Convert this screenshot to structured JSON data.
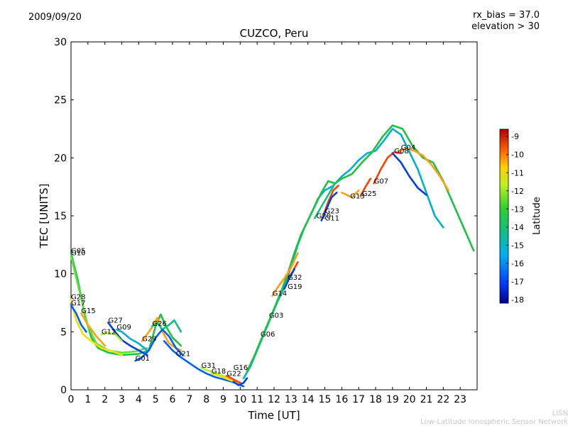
{
  "header": {
    "date": "2009/09/20",
    "rx_bias": "rx_bias = 37.0",
    "elevation": "elevation > 30"
  },
  "footer": {
    "line1": "LISN",
    "line2": "Low-Latitude Ionospheric Sensor Network"
  },
  "colors": {
    "series_palette": [
      "#00008f",
      "#0060ff",
      "#00b0d0",
      "#10c080",
      "#60e040",
      "#b0f030",
      "#f0e010",
      "#ffa010",
      "#ff4000",
      "#d00000"
    ]
  },
  "chart_data": {
    "type": "scatter",
    "title": "CUZCO, Peru",
    "xlabel": "Time [UT]",
    "ylabel": "TEC [UNITS]",
    "xlim": [
      0,
      24
    ],
    "ylim": [
      0,
      30
    ],
    "x_ticks": [
      "0",
      "1",
      "2",
      "3",
      "4",
      "5",
      "6",
      "7",
      "8",
      "9",
      "10",
      "11",
      "12",
      "13",
      "14",
      "15",
      "16",
      "17",
      "18",
      "19",
      "20",
      "21",
      "22",
      "23"
    ],
    "y_ticks": [
      "0",
      "5",
      "10",
      "15",
      "20",
      "25",
      "30"
    ],
    "grid": false,
    "colorbar": {
      "label": "Latitude",
      "range": [
        -18.2,
        -8.6
      ],
      "ticks": [
        "-9",
        "-10",
        "-11",
        "-12",
        "-13",
        "-14",
        "-15",
        "-16",
        "-17",
        "-18"
      ],
      "tick_values": [
        -9,
        -10,
        -11,
        -12,
        -13,
        -14,
        -15,
        -16,
        -17,
        -18
      ]
    },
    "series": [
      {
        "name": "G05",
        "label_at": [
          0.0,
          11.8
        ],
        "color": "#20c040",
        "points": [
          [
            0,
            11.8
          ],
          [
            0.4,
            9.5
          ],
          [
            0.8,
            6.5
          ],
          [
            1.2,
            4.5
          ],
          [
            1.6,
            3.6
          ],
          [
            2.2,
            3.2
          ],
          [
            3.0,
            3.0
          ],
          [
            4.0,
            3.1
          ],
          [
            4.6,
            3.4
          ],
          [
            5.0,
            5.5
          ],
          [
            5.3,
            6.5
          ],
          [
            5.6,
            5.5
          ],
          [
            6.0,
            4.5
          ],
          [
            6.5,
            3.8
          ]
        ]
      },
      {
        "name": "G10",
        "label_at": [
          0.0,
          11.6
        ],
        "color": "#60e040",
        "points": [
          [
            0,
            11.5
          ],
          [
            0.5,
            8.5
          ],
          [
            1.0,
            5.5
          ],
          [
            1.5,
            4.0
          ],
          [
            2.2,
            3.4
          ],
          [
            3.0,
            3.2
          ],
          [
            3.8,
            3.3
          ],
          [
            4.5,
            3.6
          ]
        ]
      },
      {
        "name": "G28",
        "label_at": [
          0.0,
          7.8
        ],
        "color": "#f0e010",
        "points": [
          [
            0,
            7.8
          ],
          [
            0.3,
            6.0
          ],
          [
            0.7,
            4.8
          ],
          [
            1.2,
            4.2
          ],
          [
            1.8,
            3.6
          ],
          [
            2.5,
            3.3
          ],
          [
            3.0,
            3.0
          ]
        ]
      },
      {
        "name": "G17",
        "label_at": [
          0.0,
          7.3
        ],
        "color": "#0060ff",
        "points": [
          [
            0,
            7.3
          ],
          [
            0.3,
            6.6
          ],
          [
            0.6,
            5.6
          ],
          [
            0.9,
            5.0
          ]
        ]
      },
      {
        "name": "G15",
        "label_at": [
          0.6,
          6.6
        ],
        "color": "#ffa010",
        "points": [
          [
            0.6,
            6.6
          ],
          [
            1.0,
            5.6
          ],
          [
            1.5,
            4.6
          ],
          [
            2.0,
            3.8
          ]
        ]
      },
      {
        "name": "G27",
        "label_at": [
          2.2,
          5.8
        ],
        "color": "#0040e0",
        "points": [
          [
            2.2,
            5.8
          ],
          [
            2.6,
            5.0
          ],
          [
            3.0,
            4.3
          ],
          [
            3.5,
            3.8
          ],
          [
            4.0,
            3.4
          ],
          [
            4.5,
            3.0
          ]
        ]
      },
      {
        "name": "G12",
        "label_at": [
          1.8,
          4.8
        ],
        "color": "#b0f030",
        "points": [
          [
            1.8,
            4.8
          ],
          [
            2.2,
            4.9
          ],
          [
            2.6,
            4.8
          ],
          [
            3.0,
            4.2
          ]
        ]
      },
      {
        "name": "G09",
        "label_at": [
          2.7,
          5.2
        ],
        "color": "#00b0d0",
        "points": [
          [
            2.7,
            5.2
          ],
          [
            3.0,
            5.0
          ],
          [
            3.5,
            4.4
          ],
          [
            4.0,
            4.0
          ],
          [
            4.5,
            3.4
          ]
        ]
      },
      {
        "name": "G29",
        "label_at": [
          4.2,
          4.2
        ],
        "color": "#ffa010",
        "points": [
          [
            4.2,
            4.2
          ],
          [
            4.5,
            4.8
          ],
          [
            4.8,
            5.4
          ],
          [
            5.1,
            6.2
          ],
          [
            5.4,
            5.0
          ],
          [
            5.8,
            4.0
          ],
          [
            6.2,
            3.6
          ],
          [
            6.5,
            3.4
          ]
        ]
      },
      {
        "name": "G26",
        "label_at": [
          4.8,
          5.5
        ],
        "color": "#10c080",
        "points": [
          [
            4.8,
            5.5
          ],
          [
            5.1,
            5.8
          ],
          [
            5.4,
            5.2
          ],
          [
            5.8,
            5.6
          ],
          [
            6.1,
            6.0
          ],
          [
            6.5,
            5.0
          ]
        ]
      },
      {
        "name": "G01",
        "label_at": [
          3.8,
          2.5
        ],
        "color": "#0060ff",
        "points": [
          [
            3.8,
            2.5
          ],
          [
            4.2,
            2.8
          ],
          [
            4.6,
            3.4
          ],
          [
            5.0,
            4.5
          ],
          [
            5.4,
            5.2
          ],
          [
            5.8,
            4.6
          ],
          [
            6.2,
            3.6
          ],
          [
            6.6,
            3.0
          ]
        ]
      },
      {
        "name": "G21",
        "label_at": [
          6.2,
          2.9
        ],
        "color": "#0060ff",
        "points": [
          [
            5.5,
            4.2
          ],
          [
            6.0,
            3.4
          ],
          [
            6.5,
            2.8
          ],
          [
            7.0,
            2.3
          ],
          [
            7.5,
            1.8
          ],
          [
            8.0,
            1.4
          ],
          [
            8.5,
            1.1
          ],
          [
            9.0,
            0.9
          ],
          [
            9.5,
            0.7
          ],
          [
            10.0,
            0.4
          ],
          [
            10.2,
            0.3
          ]
        ]
      },
      {
        "name": "G31",
        "label_at": [
          7.7,
          1.9
        ],
        "color": "#b0f030",
        "points": [
          [
            7.7,
            1.9
          ],
          [
            8.2,
            1.6
          ],
          [
            8.8,
            1.3
          ],
          [
            9.4,
            1.0
          ],
          [
            9.9,
            0.6
          ]
        ]
      },
      {
        "name": "G18",
        "label_at": [
          8.3,
          1.4
        ],
        "color": "#f0e010",
        "points": [
          [
            8.3,
            1.4
          ],
          [
            8.8,
            1.2
          ],
          [
            9.3,
            0.9
          ],
          [
            9.8,
            0.6
          ]
        ]
      },
      {
        "name": "G22",
        "label_at": [
          9.2,
          1.2
        ],
        "color": "#ff4000",
        "points": [
          [
            9.2,
            1.2
          ],
          [
            9.6,
            0.9
          ],
          [
            10.0,
            0.6
          ]
        ]
      },
      {
        "name": "G16",
        "label_at": [
          9.6,
          1.7
        ],
        "color": "#0040e0",
        "points": [
          [
            9.6,
            0.7
          ],
          [
            9.9,
            0.4
          ],
          [
            10.2,
            0.6
          ],
          [
            10.4,
            1.0
          ]
        ]
      },
      {
        "name": "G06",
        "label_at": [
          11.2,
          4.6
        ],
        "color": "#00b0d0",
        "points": [
          [
            10.2,
            1.0
          ],
          [
            10.6,
            2.0
          ],
          [
            11.0,
            3.4
          ],
          [
            11.4,
            4.8
          ],
          [
            11.8,
            6.2
          ],
          [
            12.2,
            7.6
          ],
          [
            12.6,
            8.8
          ],
          [
            13.0,
            10.6
          ],
          [
            13.4,
            12.5
          ],
          [
            13.8,
            14.0
          ],
          [
            14.2,
            15.2
          ],
          [
            14.6,
            16.5
          ],
          [
            15.0,
            17.2
          ],
          [
            15.5,
            17.6
          ],
          [
            16.0,
            18.4
          ],
          [
            16.5,
            19.0
          ],
          [
            17.0,
            19.8
          ],
          [
            17.5,
            20.4
          ],
          [
            18.0,
            20.6
          ],
          [
            18.5,
            21.5
          ],
          [
            19.0,
            22.5
          ],
          [
            19.5,
            22.0
          ],
          [
            20.0,
            20.5
          ],
          [
            20.5,
            19.0
          ],
          [
            21.0,
            17.0
          ],
          [
            21.5,
            15.0
          ],
          [
            22.0,
            14.0
          ]
        ]
      },
      {
        "name": "G03",
        "label_at": [
          11.7,
          6.2
        ],
        "color": "#20c040",
        "points": [
          [
            10.4,
            1.6
          ],
          [
            10.8,
            2.8
          ],
          [
            11.2,
            4.2
          ],
          [
            11.6,
            5.6
          ],
          [
            12.0,
            7.0
          ],
          [
            12.4,
            8.4
          ],
          [
            12.8,
            10.0
          ],
          [
            13.2,
            11.8
          ],
          [
            13.6,
            13.4
          ],
          [
            14.0,
            14.6
          ],
          [
            14.4,
            15.8
          ],
          [
            14.8,
            17.0
          ],
          [
            15.2,
            18.0
          ],
          [
            15.6,
            17.8
          ],
          [
            16.0,
            18.2
          ],
          [
            16.6,
            18.6
          ],
          [
            17.2,
            19.6
          ],
          [
            17.8,
            20.5
          ],
          [
            18.4,
            21.8
          ],
          [
            19.0,
            22.8
          ],
          [
            19.6,
            22.5
          ],
          [
            20.2,
            21.0
          ],
          [
            20.8,
            20.0
          ],
          [
            21.4,
            19.6
          ],
          [
            22.0,
            18.0
          ],
          [
            22.6,
            16.0
          ],
          [
            23.2,
            14.0
          ],
          [
            23.8,
            12.0
          ]
        ]
      },
      {
        "name": "G14",
        "label_at": [
          11.9,
          8.1
        ],
        "color": "#ffa010",
        "points": [
          [
            11.9,
            8.1
          ],
          [
            12.2,
            8.8
          ],
          [
            12.6,
            9.6
          ],
          [
            13.0,
            10.5
          ],
          [
            13.4,
            11.8
          ]
        ]
      },
      {
        "name": "G32",
        "label_at": [
          12.8,
          9.5
        ],
        "color": "#ff4000",
        "points": [
          [
            12.8,
            9.5
          ],
          [
            13.1,
            10.2
          ],
          [
            13.4,
            11.0
          ]
        ]
      },
      {
        "name": "G19",
        "label_at": [
          12.8,
          8.7
        ],
        "color": "#0040e0",
        "points": [
          [
            12.6,
            8.7
          ],
          [
            12.9,
            9.6
          ],
          [
            13.2,
            10.4
          ]
        ]
      },
      {
        "name": "G23",
        "label_at": [
          15.0,
          15.2
        ],
        "color": "#ff4000",
        "points": [
          [
            14.9,
            15.0
          ],
          [
            15.2,
            16.2
          ],
          [
            15.5,
            17.2
          ],
          [
            15.8,
            17.6
          ]
        ]
      },
      {
        "name": "G11",
        "label_at": [
          15.0,
          14.6
        ],
        "color": "#0040e0",
        "points": [
          [
            14.8,
            14.6
          ],
          [
            15.1,
            15.6
          ],
          [
            15.4,
            16.6
          ],
          [
            15.7,
            17.0
          ]
        ]
      },
      {
        "name": "G20",
        "label_at": [
          14.5,
          14.8
        ],
        "color": "#10c080",
        "points": [
          [
            14.4,
            14.8
          ],
          [
            14.8,
            15.8
          ],
          [
            15.2,
            16.8
          ],
          [
            15.6,
            17.8
          ]
        ]
      },
      {
        "name": "G13",
        "label_at": [
          16.5,
          16.5
        ],
        "color": "#ffa010",
        "points": [
          [
            16.0,
            17.0
          ],
          [
            16.3,
            16.8
          ],
          [
            16.6,
            16.6
          ],
          [
            17.0,
            17.2
          ]
        ]
      },
      {
        "name": "G25",
        "label_at": [
          17.2,
          16.7
        ],
        "color": "#ff4000",
        "points": [
          [
            17.1,
            16.7
          ],
          [
            17.4,
            17.5
          ],
          [
            17.7,
            18.2
          ]
        ]
      },
      {
        "name": "G07",
        "label_at": [
          17.9,
          17.8
        ],
        "color": "#ff4000",
        "points": [
          [
            17.9,
            17.8
          ],
          [
            18.3,
            19.0
          ],
          [
            18.7,
            20.0
          ],
          [
            19.1,
            20.5
          ],
          [
            19.5,
            20.4
          ]
        ]
      },
      {
        "name": "G04",
        "label_at": [
          19.5,
          20.7
        ],
        "color": "#ffa010",
        "points": [
          [
            19.4,
            20.6
          ],
          [
            19.8,
            20.8
          ],
          [
            20.3,
            20.6
          ],
          [
            20.8,
            20.2
          ],
          [
            21.3,
            19.4
          ],
          [
            21.8,
            18.4
          ],
          [
            22.3,
            17.2
          ]
        ]
      },
      {
        "name": "G08",
        "label_at": [
          19.1,
          20.4
        ],
        "color": "#0040e0",
        "points": [
          [
            19.0,
            20.4
          ],
          [
            19.5,
            19.6
          ],
          [
            20.0,
            18.4
          ],
          [
            20.5,
            17.4
          ],
          [
            21.0,
            16.8
          ]
        ]
      }
    ]
  }
}
